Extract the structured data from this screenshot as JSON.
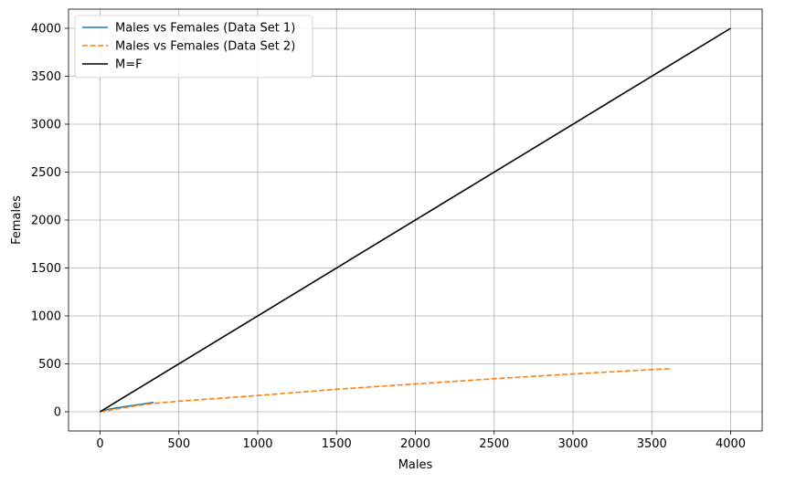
{
  "chart_data": {
    "type": "line",
    "title": "",
    "xlabel": "Males",
    "ylabel": "Females",
    "xlim": [
      -200,
      4200
    ],
    "ylim": [
      -200,
      4200
    ],
    "xticks": [
      0,
      500,
      1000,
      1500,
      2000,
      2500,
      3000,
      3500,
      4000
    ],
    "yticks": [
      0,
      500,
      1000,
      1500,
      2000,
      2500,
      3000,
      3500,
      4000
    ],
    "grid": true,
    "legend_position": "top-left",
    "series": [
      {
        "name": "Males vs Females (Data Set 1)",
        "color": "#1f77b4",
        "linestyle": "solid",
        "x": [
          0,
          50,
          100,
          150,
          200,
          250,
          300,
          340
        ],
        "y": [
          0,
          25,
          40,
          52,
          64,
          76,
          88,
          98
        ]
      },
      {
        "name": "Males vs Females (Data Set 2)",
        "color": "#ff7f0e",
        "linestyle": "dashed",
        "x": [
          0,
          200,
          340,
          500,
          1000,
          1500,
          2000,
          2500,
          3000,
          3500,
          3620
        ],
        "y": [
          0,
          55,
          88,
          110,
          170,
          235,
          290,
          345,
          395,
          440,
          450
        ]
      },
      {
        "name": "M=F",
        "color": "#000000",
        "linestyle": "solid",
        "x": [
          0,
          4000
        ],
        "y": [
          0,
          4000
        ]
      }
    ]
  }
}
